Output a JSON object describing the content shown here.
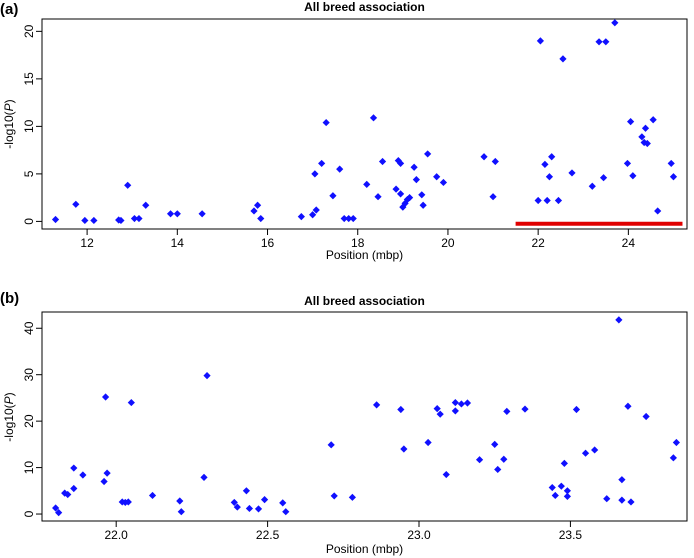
{
  "chart_data": [
    {
      "type": "scatter",
      "panel_label": "(a)",
      "title": "All breed association",
      "xlabel": "Position (mbp)",
      "ylabel": "-log10(P)",
      "xlim": [
        11.0,
        25.3
      ],
      "ylim": [
        -0.8,
        21.3
      ],
      "xticks": [
        12,
        14,
        16,
        18,
        20,
        22,
        24
      ],
      "yticks": [
        0,
        5,
        10,
        15,
        20
      ],
      "color": "#1010ff",
      "highlight": {
        "x_start": 21.5,
        "x_end": 25.2,
        "y": -0.25,
        "color": "#e00000"
      },
      "points": [
        [
          11.3,
          0.2
        ],
        [
          11.75,
          1.8
        ],
        [
          11.95,
          0.1
        ],
        [
          12.15,
          0.1
        ],
        [
          12.7,
          0.15
        ],
        [
          12.75,
          0.1
        ],
        [
          12.9,
          3.8
        ],
        [
          13.05,
          0.3
        ],
        [
          13.15,
          0.3
        ],
        [
          13.3,
          1.7
        ],
        [
          13.85,
          0.8
        ],
        [
          14.0,
          0.8
        ],
        [
          14.55,
          0.8
        ],
        [
          15.7,
          1.1
        ],
        [
          15.78,
          1.7
        ],
        [
          15.85,
          0.3
        ],
        [
          16.75,
          0.5
        ],
        [
          17.0,
          0.7
        ],
        [
          17.05,
          5.0
        ],
        [
          17.08,
          1.2
        ],
        [
          17.2,
          6.1
        ],
        [
          17.3,
          10.4
        ],
        [
          17.45,
          2.7
        ],
        [
          17.6,
          5.5
        ],
        [
          17.7,
          0.3
        ],
        [
          17.8,
          0.3
        ],
        [
          17.9,
          0.3
        ],
        [
          18.2,
          3.9
        ],
        [
          18.35,
          10.9
        ],
        [
          18.45,
          2.6
        ],
        [
          18.55,
          6.3
        ],
        [
          18.85,
          3.4
        ],
        [
          18.9,
          6.4
        ],
        [
          18.95,
          6.1
        ],
        [
          18.95,
          2.9
        ],
        [
          19.0,
          1.5
        ],
        [
          19.05,
          1.9
        ],
        [
          19.1,
          2.3
        ],
        [
          19.15,
          2.5
        ],
        [
          19.25,
          5.7
        ],
        [
          19.3,
          4.4
        ],
        [
          19.42,
          2.8
        ],
        [
          19.45,
          1.7
        ],
        [
          19.55,
          7.1
        ],
        [
          19.75,
          4.7
        ],
        [
          19.9,
          4.1
        ],
        [
          20.8,
          6.8
        ],
        [
          21.0,
          2.6
        ],
        [
          21.05,
          6.3
        ],
        [
          22.0,
          2.2
        ],
        [
          22.05,
          19.0
        ],
        [
          22.15,
          6.0
        ],
        [
          22.2,
          2.2
        ],
        [
          22.25,
          4.7
        ],
        [
          22.3,
          6.8
        ],
        [
          22.45,
          2.2
        ],
        [
          22.55,
          17.1
        ],
        [
          22.75,
          5.1
        ],
        [
          23.2,
          3.7
        ],
        [
          23.35,
          18.9
        ],
        [
          23.45,
          4.6
        ],
        [
          23.5,
          18.9
        ],
        [
          23.7,
          20.9
        ],
        [
          23.98,
          6.1
        ],
        [
          24.05,
          10.5
        ],
        [
          24.1,
          4.8
        ],
        [
          24.3,
          8.9
        ],
        [
          24.35,
          8.3
        ],
        [
          24.38,
          9.8
        ],
        [
          24.42,
          8.2
        ],
        [
          24.55,
          10.7
        ],
        [
          24.65,
          1.1
        ],
        [
          24.95,
          6.1
        ],
        [
          25.0,
          4.7
        ]
      ]
    },
    {
      "type": "scatter",
      "panel_label": "(b)",
      "title": "All breed association",
      "xlabel": "Position (mbp)",
      "ylabel": "-log10(P)",
      "xlim": [
        21.755,
        23.885
      ],
      "ylim": [
        -1.5,
        43.5
      ],
      "xticks": [
        22.0,
        22.5,
        23.0,
        23.5
      ],
      "xtick_labels": [
        "22.0",
        "22.5",
        "23.0",
        "23.5"
      ],
      "yticks": [
        0,
        10,
        20,
        30,
        40
      ],
      "color": "#1010ff",
      "points": [
        [
          21.8,
          1.3
        ],
        [
          21.81,
          0.3
        ],
        [
          21.83,
          4.5
        ],
        [
          21.84,
          4.2
        ],
        [
          21.86,
          5.5
        ],
        [
          21.86,
          9.9
        ],
        [
          21.89,
          8.4
        ],
        [
          21.96,
          7.0
        ],
        [
          21.965,
          25.2
        ],
        [
          21.97,
          8.8
        ],
        [
          22.02,
          2.6
        ],
        [
          22.03,
          2.5
        ],
        [
          22.04,
          2.6
        ],
        [
          22.05,
          24.0
        ],
        [
          22.12,
          4.0
        ],
        [
          22.21,
          2.8
        ],
        [
          22.215,
          0.5
        ],
        [
          22.29,
          7.9
        ],
        [
          22.3,
          29.8
        ],
        [
          22.39,
          2.5
        ],
        [
          22.4,
          1.5
        ],
        [
          22.43,
          5.0
        ],
        [
          22.44,
          1.2
        ],
        [
          22.47,
          1.1
        ],
        [
          22.49,
          3.1
        ],
        [
          22.55,
          2.4
        ],
        [
          22.56,
          0.5
        ],
        [
          22.71,
          14.9
        ],
        [
          22.72,
          3.9
        ],
        [
          22.78,
          3.6
        ],
        [
          22.86,
          23.5
        ],
        [
          22.94,
          22.5
        ],
        [
          22.95,
          14.0
        ],
        [
          23.03,
          15.4
        ],
        [
          23.06,
          22.7
        ],
        [
          23.07,
          21.5
        ],
        [
          23.09,
          8.5
        ],
        [
          23.12,
          22.2
        ],
        [
          23.12,
          24.0
        ],
        [
          23.14,
          23.7
        ],
        [
          23.16,
          23.9
        ],
        [
          23.2,
          11.7
        ],
        [
          23.25,
          15.0
        ],
        [
          23.26,
          9.6
        ],
        [
          23.28,
          11.8
        ],
        [
          23.29,
          22.1
        ],
        [
          23.35,
          22.6
        ],
        [
          23.44,
          5.7
        ],
        [
          23.45,
          4.0
        ],
        [
          23.47,
          6.0
        ],
        [
          23.48,
          10.9
        ],
        [
          23.49,
          3.8
        ],
        [
          23.49,
          5.0
        ],
        [
          23.52,
          22.5
        ],
        [
          23.55,
          13.1
        ],
        [
          23.58,
          13.8
        ],
        [
          23.62,
          3.3
        ],
        [
          23.66,
          41.8
        ],
        [
          23.67,
          7.4
        ],
        [
          23.67,
          3.0
        ],
        [
          23.69,
          23.2
        ],
        [
          23.7,
          2.6
        ],
        [
          23.75,
          21.0
        ],
        [
          23.84,
          12.1
        ],
        [
          23.85,
          15.4
        ]
      ]
    }
  ]
}
